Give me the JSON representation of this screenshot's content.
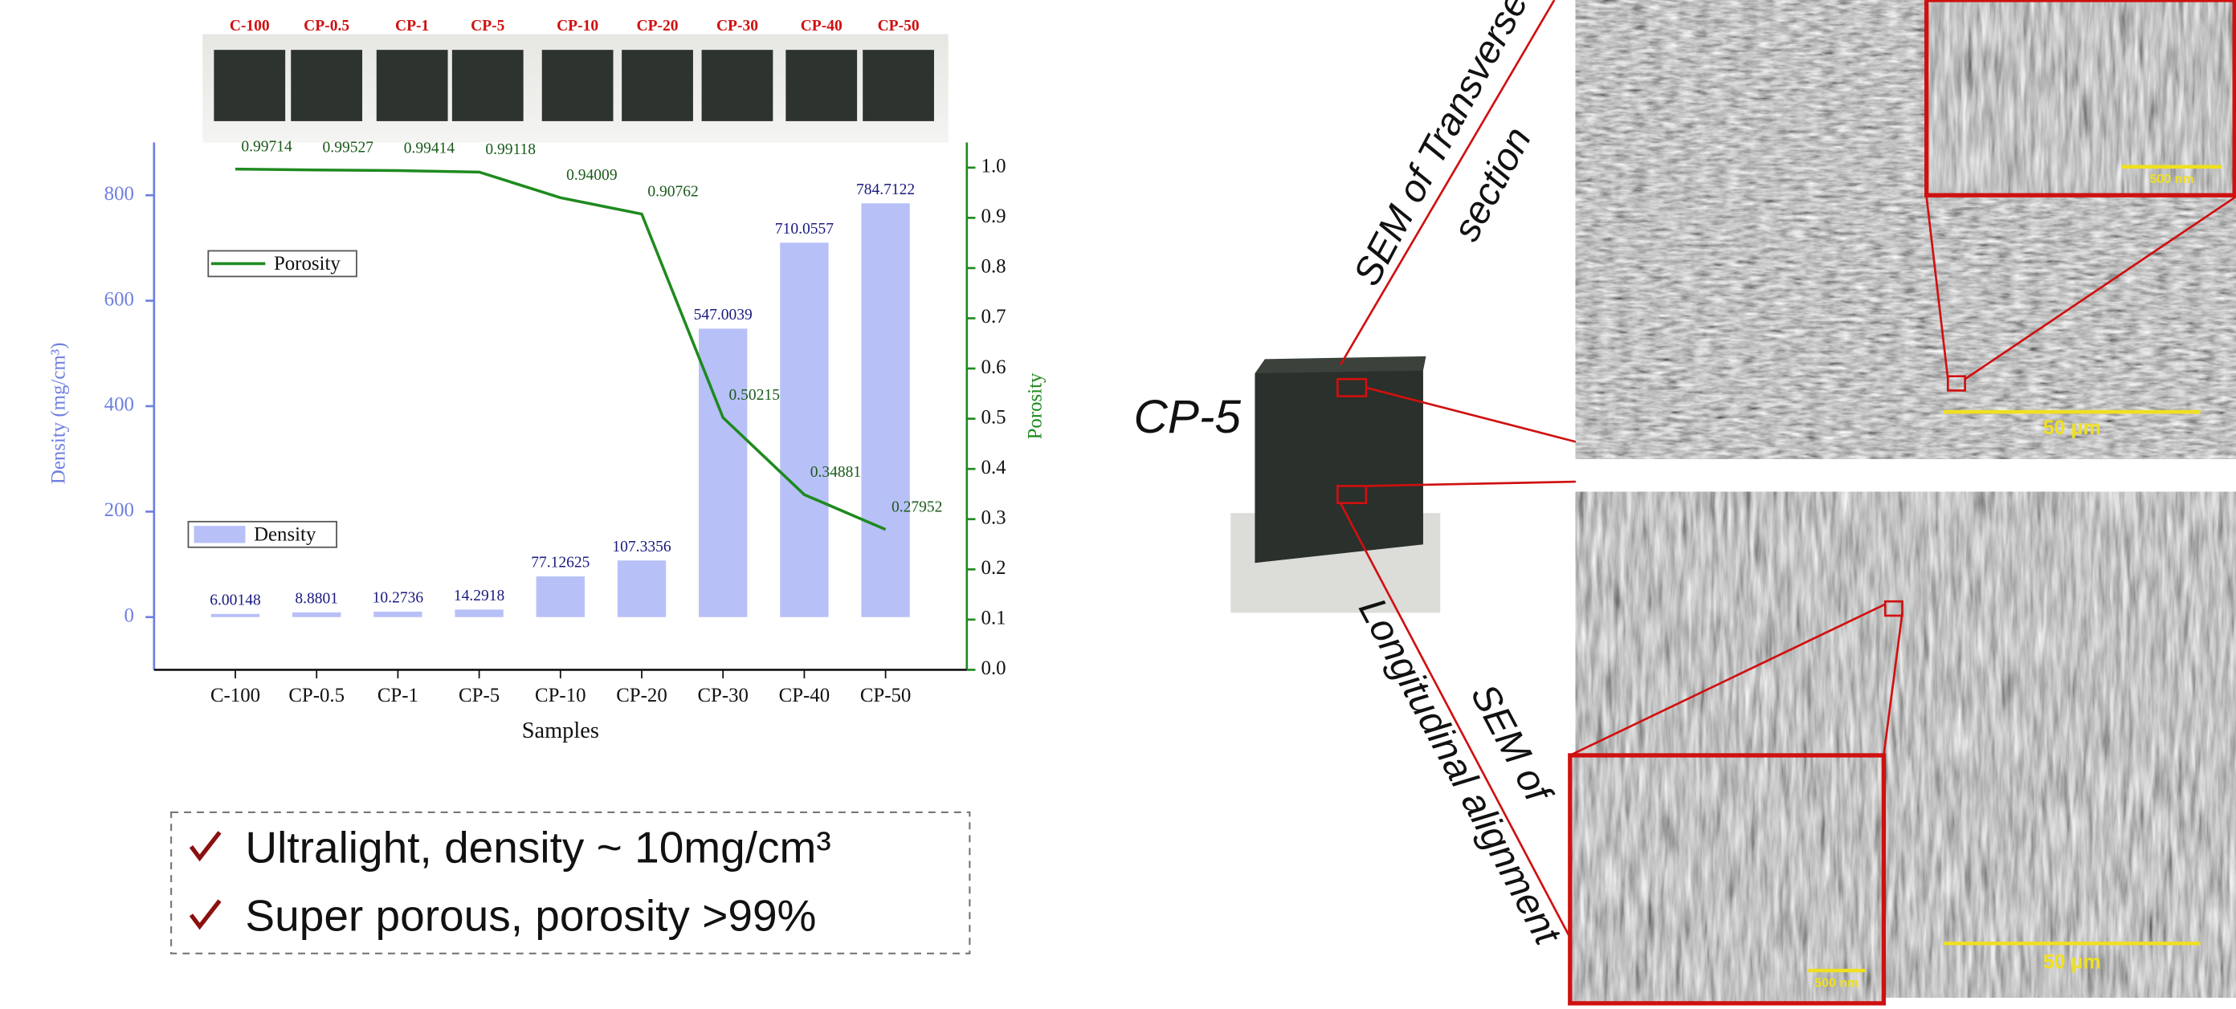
{
  "photo_labels": [
    "C-100",
    "CP-0.5",
    "CP-1",
    "CP-5",
    "CP-10",
    "CP-20",
    "CP-30",
    "CP-40",
    "CP-50"
  ],
  "chart_data": {
    "type": "bar",
    "categories": [
      "C-100",
      "CP-0.5",
      "CP-1",
      "CP-5",
      "CP-10",
      "CP-20",
      "CP-30",
      "CP-40",
      "CP-50"
    ],
    "series": [
      {
        "name": "Density",
        "type": "bar",
        "color": "#b8c0f8",
        "values": [
          6.00148,
          8.8801,
          10.2736,
          14.2918,
          77.12625,
          107.3356,
          547.0039,
          710.0557,
          784.7122
        ]
      },
      {
        "name": "Porosity",
        "type": "line",
        "axis": "y2",
        "color": "#1f8a1f",
        "values": [
          0.99714,
          0.99527,
          0.99414,
          0.99118,
          0.94009,
          0.90762,
          0.50215,
          0.34881,
          0.27952
        ]
      }
    ],
    "xlabel": "Samples",
    "ylabel": "Density (mg/cm³)",
    "y2label": "Porosity",
    "ylim": [
      -100,
      900
    ],
    "yticks": [
      0,
      200,
      400,
      600,
      800
    ],
    "y2lim": [
      0,
      1.05
    ],
    "y2ticks": [
      {
        "value": 0,
        "label": "0.0"
      },
      0.1,
      0.2,
      0.3,
      0.4,
      0.5,
      0.6,
      0.7,
      0.8,
      0.9,
      {
        "value": 1,
        "label": "1.0"
      }
    ],
    "ycolor": "#6f7fe0",
    "y2color": "#1f8a1f",
    "data_label_color": "#1a1a80",
    "data_labels": true
  },
  "sample_label": "CP-5",
  "sem": {
    "transverse_title": [
      "SEM of Transverse",
      "section"
    ],
    "longitudinal_title": [
      "SEM of",
      "Longitudinal alignment"
    ],
    "scale_bars": [
      "500 nm",
      "50 μm",
      "500 nm",
      "50 μm"
    ]
  },
  "bullets": [
    "Ultralight, density ~ 10mg/cm³",
    "Super porous, porosity >99%"
  ]
}
